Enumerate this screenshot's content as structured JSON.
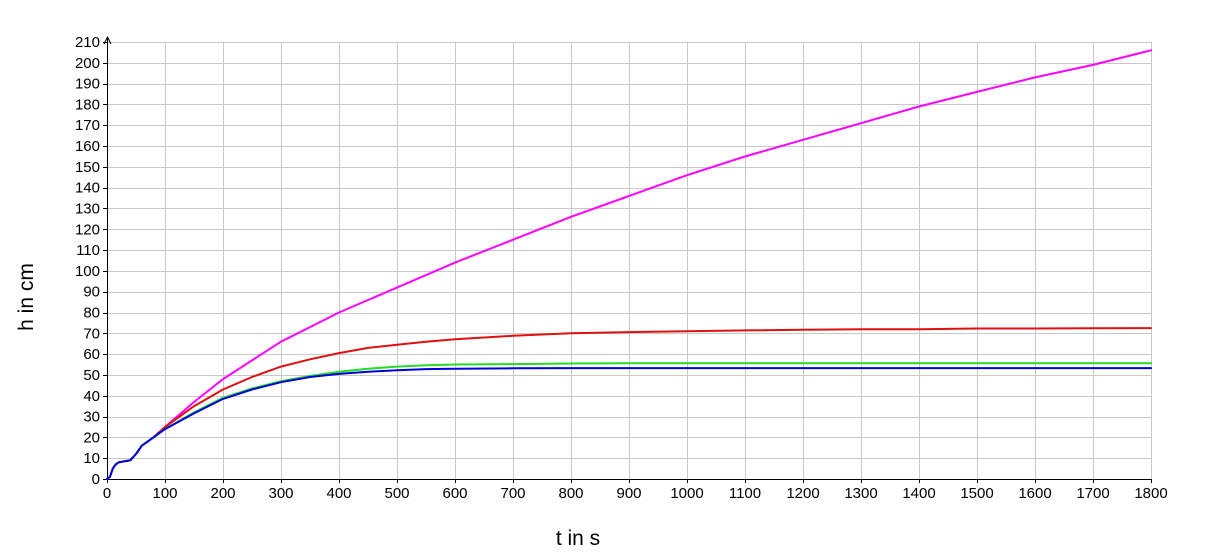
{
  "chart_data": {
    "type": "line",
    "title": "",
    "xlabel": "t in s",
    "ylabel": "h in cm",
    "xlim": [
      0,
      1800
    ],
    "ylim": [
      0,
      210
    ],
    "xticks": [
      0,
      100,
      200,
      300,
      400,
      500,
      600,
      700,
      800,
      900,
      1000,
      1100,
      1200,
      1300,
      1400,
      1500,
      1600,
      1700,
      1800
    ],
    "yticks": [
      0,
      10,
      20,
      30,
      40,
      50,
      60,
      70,
      80,
      90,
      100,
      110,
      120,
      130,
      140,
      150,
      160,
      170,
      180,
      190,
      200,
      210
    ],
    "grid": true,
    "legend": "none",
    "x": [
      0,
      5,
      10,
      15,
      20,
      30,
      40,
      50,
      60,
      80,
      100,
      150,
      200,
      250,
      300,
      350,
      400,
      450,
      500,
      550,
      600,
      700,
      800,
      900,
      1000,
      1100,
      1200,
      1300,
      1400,
      1500,
      1600,
      1700,
      1800
    ],
    "series": [
      {
        "color": "#ff00ff",
        "values": [
          0,
          1,
          5,
          7,
          8,
          8.5,
          9,
          12,
          16,
          20,
          25,
          37,
          48,
          57,
          66,
          73,
          80,
          86,
          92,
          98,
          104,
          115,
          126,
          136,
          146,
          155,
          163,
          171,
          179,
          186,
          193,
          199,
          206
        ]
      },
      {
        "color": "#e01010",
        "values": [
          0,
          1,
          5,
          7,
          8,
          8.5,
          9,
          12,
          16,
          20,
          25,
          35,
          43,
          49,
          54,
          57.5,
          60.5,
          63,
          64.5,
          66,
          67.2,
          68.8,
          70,
          70.6,
          71,
          71.4,
          71.7,
          72,
          72,
          72.3,
          72.3,
          72.4,
          72.5
        ]
      },
      {
        "color": "#22dd22",
        "values": [
          0,
          1,
          5,
          7,
          8,
          8.5,
          9,
          12,
          16,
          20,
          24,
          32,
          39,
          43.5,
          47,
          49.5,
          51.5,
          53,
          54,
          54.7,
          55,
          55.2,
          55.5,
          55.6,
          55.6,
          55.6,
          55.6,
          55.6,
          55.6,
          55.6,
          55.6,
          55.6,
          55.6
        ]
      },
      {
        "color": "#0000dd",
        "values": [
          0,
          1,
          5,
          7,
          8,
          8.5,
          9,
          12,
          16,
          20,
          24,
          31.5,
          38.5,
          43,
          46.5,
          49,
          50.5,
          51.5,
          52.3,
          52.8,
          53,
          53.2,
          53.3,
          53.3,
          53.3,
          53.3,
          53.3,
          53.3,
          53.3,
          53.3,
          53.3,
          53.3,
          53.3
        ]
      }
    ]
  }
}
